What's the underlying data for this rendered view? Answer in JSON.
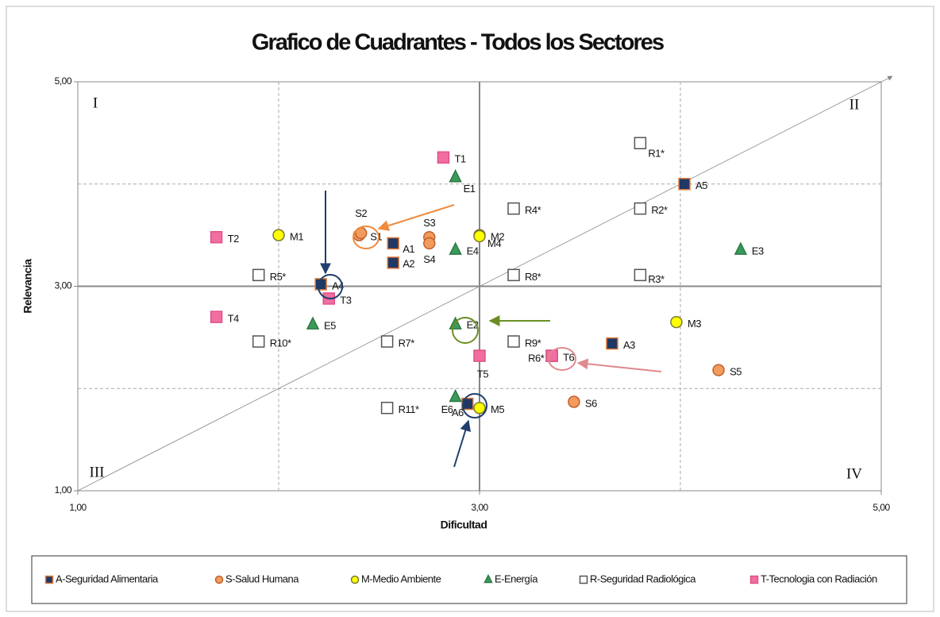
{
  "chart_data": {
    "type": "scatter",
    "title": "Grafico de Cuadrantes - Todos los Sectores",
    "xlabel": "Dificultad",
    "ylabel": "Relevancia",
    "xlim": [
      1,
      5
    ],
    "ylim": [
      1,
      5
    ],
    "xticks": [
      {
        "value": 1,
        "label": "1,00"
      },
      {
        "value": 3,
        "label": "3,00"
      },
      {
        "value": 5,
        "label": "5,00"
      }
    ],
    "yticks": [
      {
        "value": 1,
        "label": "1,00"
      },
      {
        "value": 3,
        "label": "3,00"
      },
      {
        "value": 5,
        "label": "5,00"
      }
    ],
    "xgrid": [
      2,
      4
    ],
    "ygrid": [
      2,
      4
    ],
    "quadrant_divider": {
      "x": 3,
      "y": 3
    },
    "quadrants": [
      "I",
      "II",
      "III",
      "IV"
    ],
    "series": [
      {
        "name": "A-Seguridad Alimentaria",
        "marker": "square",
        "color": "#1f3864",
        "edge": "#e07b39",
        "labels": [
          "A1",
          "A2",
          "A3",
          "A4",
          "A5",
          "A6"
        ],
        "x": [
          2.57,
          2.57,
          3.66,
          2.21,
          4.02,
          2.94
        ],
        "y": [
          3.42,
          3.23,
          2.44,
          3.02,
          4.0,
          1.85
        ]
      },
      {
        "name": "S-Salud Humana",
        "marker": "circle",
        "color": "#f29b5e",
        "edge": "#c0602a",
        "labels": [
          "S1",
          "S2",
          "S3",
          "S4",
          "S5",
          "S6"
        ],
        "x": [
          2.4,
          2.41,
          2.75,
          2.75,
          4.19,
          3.47
        ],
        "y": [
          3.5,
          3.52,
          3.48,
          3.42,
          2.18,
          1.87
        ]
      },
      {
        "name": "M-Medio Ambiente",
        "marker": "circle",
        "color": "#ffff00",
        "edge": "#7a7a30",
        "labels": [
          "M1",
          "M2",
          "M3",
          "M4",
          "M5"
        ],
        "x": [
          2.0,
          3.0,
          3.98,
          3.0,
          3.0
        ],
        "y": [
          3.5,
          3.5,
          2.65,
          3.49,
          1.81
        ]
      },
      {
        "name": "E-Energía",
        "marker": "triangle",
        "color": "#3a9a5a",
        "edge": "#2b7a45",
        "labels": [
          "E1",
          "E2",
          "E3",
          "E4",
          "E5",
          "E6"
        ],
        "x": [
          2.88,
          2.88,
          4.3,
          2.88,
          2.17,
          2.88
        ],
        "y": [
          4.07,
          2.63,
          3.36,
          3.36,
          2.63,
          1.92
        ]
      },
      {
        "name": "R-Seguridad Radiológica",
        "marker": "square",
        "color": "#ffffff",
        "edge": "#555555",
        "labels": [
          "R1*",
          "R2*",
          "R3*",
          "R4*",
          "R5*",
          "R6*",
          "R7*",
          "R8*",
          "R9*",
          "R10*",
          "R11*"
        ],
        "x": [
          3.8,
          3.8,
          3.8,
          3.17,
          1.9,
          3.36,
          2.54,
          3.17,
          3.17,
          1.9,
          2.54
        ],
        "y": [
          4.4,
          3.76,
          3.11,
          3.76,
          3.11,
          2.32,
          2.46,
          3.11,
          2.46,
          2.46,
          1.81
        ]
      },
      {
        "name": "T-Tecnologia  con Radiación",
        "marker": "square",
        "color": "#f06fa0",
        "edge": "#e0508a",
        "labels": [
          "T1",
          "T2",
          "T3",
          "T4",
          "T5",
          "T6"
        ],
        "x": [
          2.82,
          1.69,
          2.25,
          1.69,
          3.0,
          3.36
        ],
        "y": [
          4.26,
          3.48,
          2.88,
          2.7,
          2.32,
          2.32
        ]
      }
    ]
  }
}
